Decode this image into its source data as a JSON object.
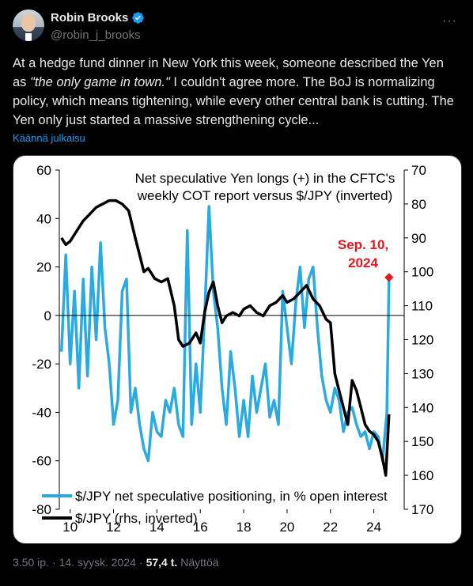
{
  "author": {
    "name": "Robin Brooks",
    "handle": "@robin_j_brooks"
  },
  "tweet": {
    "text_part1": "At a hedge fund dinner in New York this week, someone described the Yen as ",
    "text_quote": "\"the only game in town.\"",
    "text_part2": " I couldn't agree more. The BoJ is normalizing policy, which means tightening, while every other central bank is cutting. The Yen only just started a massive strengthening cycle...",
    "translate_label": "Käännä julkaisu"
  },
  "footer": {
    "time": "3.50 ip.",
    "date": "14. syysk. 2024",
    "views_count": "57,4 t.",
    "views_label": "Näyttöä"
  },
  "chart_data": {
    "type": "line",
    "title_line1": "Net speculative Yen longs (+) in the CFTC's",
    "title_line2": "weekly COT report versus $/JPY (inverted)",
    "annotation_line1": "Sep. 10,",
    "annotation_line2": "2024",
    "annotation_color": "#e8171e",
    "xlim": [
      2009.5,
      2025.4
    ],
    "x_ticks": [
      "10",
      "12",
      "14",
      "16",
      "18",
      "20",
      "22",
      "24"
    ],
    "x_tick_values": [
      2010,
      2012,
      2014,
      2016,
      2018,
      2020,
      2022,
      2024
    ],
    "y_left": {
      "range": [
        -80,
        60
      ],
      "ticks": [
        "60",
        "40",
        "20",
        "0",
        "-20",
        "-40",
        "-60",
        "-80"
      ],
      "tick_values": [
        60,
        40,
        20,
        0,
        -20,
        -40,
        -60,
        -80
      ]
    },
    "y_right": {
      "range": [
        70,
        170
      ],
      "inverted": true,
      "ticks": [
        "70",
        "80",
        "90",
        "100",
        "110",
        "120",
        "130",
        "140",
        "150",
        "160",
        "170"
      ],
      "tick_values": [
        70,
        80,
        90,
        100,
        110,
        120,
        130,
        140,
        150,
        160,
        170
      ]
    },
    "grid": false,
    "legend_position": "bottom-left",
    "series": [
      {
        "name": "$/JPY net speculative positioning, in % open interest",
        "axis": "left",
        "color": "#29abe2",
        "x": [
          2009.6,
          2009.8,
          2010.0,
          2010.2,
          2010.4,
          2010.6,
          2010.8,
          2011.0,
          2011.2,
          2011.4,
          2011.6,
          2011.8,
          2012.0,
          2012.2,
          2012.4,
          2012.6,
          2012.8,
          2013.0,
          2013.2,
          2013.4,
          2013.6,
          2013.8,
          2014.0,
          2014.2,
          2014.4,
          2014.6,
          2014.8,
          2015.0,
          2015.2,
          2015.4,
          2015.6,
          2015.8,
          2016.0,
          2016.2,
          2016.4,
          2016.6,
          2016.8,
          2017.0,
          2017.2,
          2017.4,
          2017.6,
          2017.8,
          2018.0,
          2018.2,
          2018.4,
          2018.6,
          2018.8,
          2019.0,
          2019.2,
          2019.4,
          2019.6,
          2019.8,
          2020.0,
          2020.2,
          2020.4,
          2020.6,
          2020.8,
          2021.0,
          2021.2,
          2021.4,
          2021.6,
          2021.8,
          2022.0,
          2022.2,
          2022.4,
          2022.6,
          2022.8,
          2023.0,
          2023.2,
          2023.4,
          2023.6,
          2023.8,
          2024.0,
          2024.2,
          2024.4,
          2024.6,
          2024.7
        ],
        "values": [
          -15,
          25,
          -20,
          10,
          -30,
          15,
          -25,
          20,
          -10,
          30,
          -5,
          -20,
          -45,
          -35,
          10,
          15,
          -40,
          -30,
          -45,
          -55,
          -60,
          -40,
          -48,
          -50,
          -35,
          -40,
          -30,
          -45,
          -50,
          35,
          -45,
          -20,
          -40,
          0,
          45,
          10,
          -5,
          -30,
          -45,
          -15,
          -30,
          -50,
          -35,
          -50,
          -25,
          -40,
          -30,
          -20,
          -42,
          -35,
          -45,
          10,
          -5,
          -20,
          5,
          20,
          -5,
          15,
          20,
          -5,
          -25,
          -35,
          -40,
          -30,
          -35,
          -48,
          -40,
          -38,
          -45,
          -50,
          -48,
          -55,
          -48,
          -50,
          -60,
          -40,
          15
        ]
      },
      {
        "name": "$/JPY (rhs, inverted)",
        "axis": "right",
        "color": "#000000",
        "x": [
          2009.6,
          2009.8,
          2010.0,
          2010.3,
          2010.6,
          2010.9,
          2011.2,
          2011.5,
          2011.8,
          2012.1,
          2012.4,
          2012.7,
          2013.0,
          2013.2,
          2013.4,
          2013.6,
          2013.9,
          2014.2,
          2014.5,
          2014.8,
          2015.0,
          2015.2,
          2015.5,
          2015.8,
          2016.0,
          2016.2,
          2016.4,
          2016.6,
          2016.8,
          2017.0,
          2017.2,
          2017.5,
          2017.8,
          2018.0,
          2018.3,
          2018.6,
          2018.9,
          2019.2,
          2019.5,
          2019.8,
          2020.0,
          2020.3,
          2020.6,
          2020.9,
          2021.2,
          2021.5,
          2021.8,
          2022.0,
          2022.2,
          2022.4,
          2022.6,
          2022.8,
          2023.0,
          2023.2,
          2023.4,
          2023.6,
          2023.8,
          2024.0,
          2024.2,
          2024.4,
          2024.55,
          2024.7
        ],
        "values": [
          90,
          92,
          91,
          88,
          85,
          83,
          81,
          80,
          79,
          79,
          80,
          82,
          90,
          95,
          100,
          99,
          102,
          103,
          102,
          110,
          120,
          122,
          121,
          118,
          121,
          112,
          106,
          103,
          110,
          115,
          113,
          112,
          113,
          111,
          110,
          112,
          113,
          110,
          109,
          107,
          109,
          108,
          106,
          104,
          108,
          110,
          114,
          115,
          130,
          135,
          140,
          145,
          132,
          135,
          140,
          145,
          147,
          148,
          150,
          155,
          160,
          142
        ]
      }
    ]
  }
}
